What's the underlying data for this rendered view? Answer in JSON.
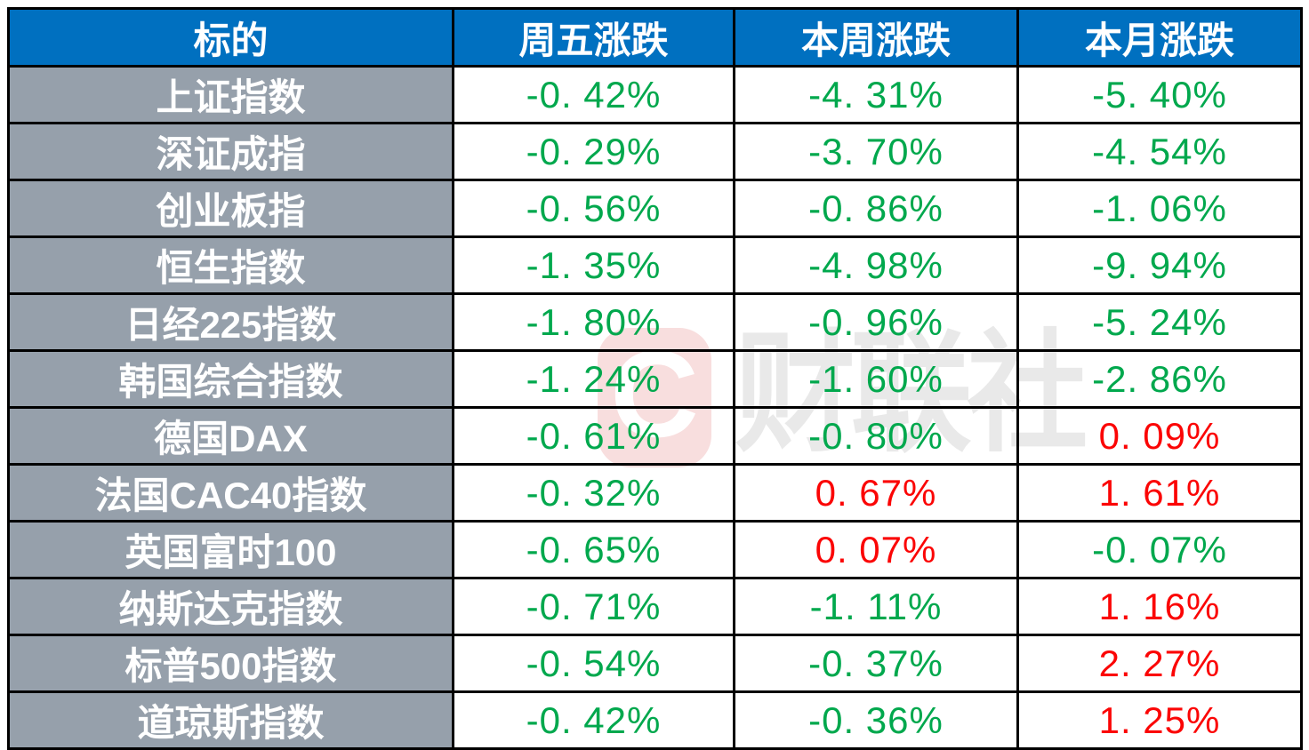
{
  "table": {
    "columns": [
      "标的",
      "周五涨跌",
      "本周涨跌",
      "本月涨跌"
    ],
    "rows": [
      {
        "name": "上证指数",
        "values": [
          "-0. 42%",
          "-4. 31%",
          "-5. 40%"
        ]
      },
      {
        "name": "深证成指",
        "values": [
          "-0. 29%",
          "-3. 70%",
          "-4. 54%"
        ]
      },
      {
        "name": "创业板指",
        "values": [
          "-0. 56%",
          "-0. 86%",
          "-1. 06%"
        ]
      },
      {
        "name": "恒生指数",
        "values": [
          "-1. 35%",
          "-4. 98%",
          "-9. 94%"
        ]
      },
      {
        "name": "日经225指数",
        "values": [
          "-1. 80%",
          "-0. 96%",
          "-5. 24%"
        ]
      },
      {
        "name": "韩国综合指数",
        "values": [
          "-1. 24%",
          "-1. 60%",
          "-2. 86%"
        ]
      },
      {
        "name": "德国DAX",
        "values": [
          "-0. 61%",
          "-0. 80%",
          "0. 09%"
        ]
      },
      {
        "name": "法国CAC40指数",
        "values": [
          "-0. 32%",
          "0. 67%",
          "1. 61%"
        ]
      },
      {
        "name": "英国富时100",
        "values": [
          "-0. 65%",
          "0. 07%",
          "-0. 07%"
        ]
      },
      {
        "name": "纳斯达克指数",
        "values": [
          "-0. 71%",
          "-1. 11%",
          "1. 16%"
        ]
      },
      {
        "name": "标普500指数",
        "values": [
          "-0. 54%",
          "-0. 37%",
          "2. 27%"
        ]
      },
      {
        "name": "道琼斯指数",
        "values": [
          "-0. 42%",
          "-0. 36%",
          "1. 25%"
        ]
      }
    ]
  },
  "watermark": {
    "logo_letter": "C",
    "text": "财联社"
  },
  "colors": {
    "header_bg": "#0070C0",
    "header_text": "#FFFFFF",
    "label_bg": "#96A0AB",
    "down_green": "#00A84D",
    "up_red": "#FB0505",
    "border": "#000000",
    "watermark_pink": "#F8DEDE",
    "watermark_gray": "#E9E9E9"
  },
  "chart_data": {
    "type": "table",
    "columns": [
      "标的",
      "周五涨跌",
      "本周涨跌",
      "本月涨跌"
    ],
    "unit": "%",
    "color_rule": "negative = green, positive = red",
    "rows": [
      {
        "标的": "上证指数",
        "周五涨跌": -0.42,
        "本周涨跌": -4.31,
        "本月涨跌": -5.4
      },
      {
        "标的": "深证成指",
        "周五涨跌": -0.29,
        "本周涨跌": -3.7,
        "本月涨跌": -4.54
      },
      {
        "标的": "创业板指",
        "周五涨跌": -0.56,
        "本周涨跌": -0.86,
        "本月涨跌": -1.06
      },
      {
        "标的": "恒生指数",
        "周五涨跌": -1.35,
        "本周涨跌": -4.98,
        "本月涨跌": -9.94
      },
      {
        "标的": "日经225指数",
        "周五涨跌": -1.8,
        "本周涨跌": -0.96,
        "本月涨跌": -5.24
      },
      {
        "标的": "韩国综合指数",
        "周五涨跌": -1.24,
        "本周涨跌": -1.6,
        "本月涨跌": -2.86
      },
      {
        "标的": "德国DAX",
        "周五涨跌": -0.61,
        "本周涨跌": -0.8,
        "本月涨跌": 0.09
      },
      {
        "标的": "法国CAC40指数",
        "周五涨跌": -0.32,
        "本周涨跌": 0.67,
        "本月涨跌": 1.61
      },
      {
        "标的": "英国富时100",
        "周五涨跌": -0.65,
        "本周涨跌": 0.07,
        "本月涨跌": -0.07
      },
      {
        "标的": "纳斯达克指数",
        "周五涨跌": -0.71,
        "本周涨跌": -1.11,
        "本月涨跌": 1.16
      },
      {
        "标的": "标普500指数",
        "周五涨跌": -0.54,
        "本周涨跌": -0.37,
        "本月涨跌": 2.27
      },
      {
        "标的": "道琼斯指数",
        "周五涨跌": -0.42,
        "本周涨跌": -0.36,
        "本月涨跌": 1.25
      }
    ]
  }
}
